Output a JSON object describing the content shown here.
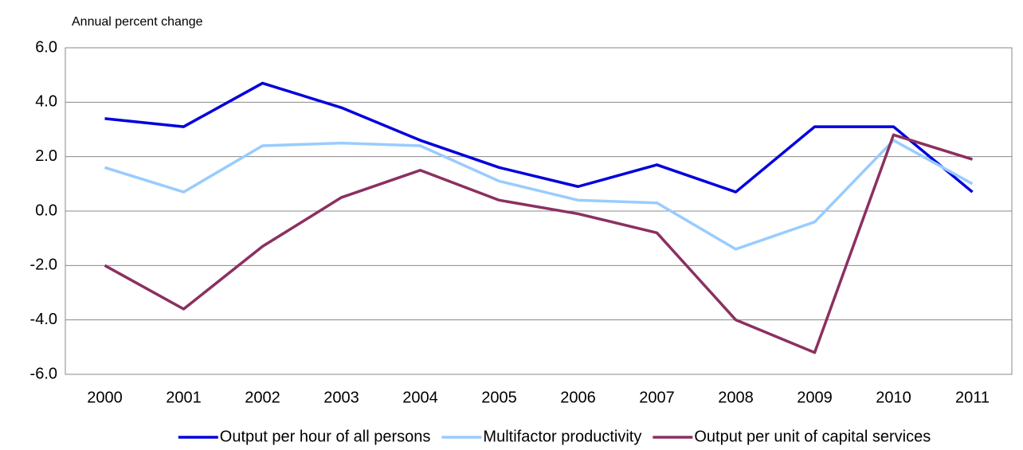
{
  "chart_data": {
    "type": "line",
    "y_label": "Annual percent change",
    "categories": [
      "2000",
      "2001",
      "2002",
      "2003",
      "2004",
      "2005",
      "2006",
      "2007",
      "2008",
      "2009",
      "2010",
      "2011"
    ],
    "series": [
      {
        "name": "Output per hour of all persons",
        "color": "#0000dd",
        "values": [
          3.4,
          3.1,
          4.7,
          3.8,
          2.6,
          1.6,
          0.9,
          1.7,
          0.7,
          3.1,
          3.1,
          0.7
        ]
      },
      {
        "name": "Multifactor productivity",
        "color": "#99ccff",
        "values": [
          1.6,
          0.7,
          2.4,
          2.5,
          2.4,
          1.1,
          0.4,
          0.3,
          -1.4,
          -0.4,
          2.6,
          1.0
        ]
      },
      {
        "name": "Output per unit of capital services",
        "color": "#8b3060",
        "values": [
          -2.0,
          -3.6,
          -1.3,
          0.5,
          1.5,
          0.4,
          -0.1,
          -0.8,
          -4.0,
          -5.2,
          2.8,
          1.9
        ]
      }
    ],
    "ylim": [
      -6,
      6
    ],
    "yticks": [
      {
        "value": -6,
        "label": "-6.0"
      },
      {
        "value": -4,
        "label": "-4.0"
      },
      {
        "value": -2,
        "label": "-2.0"
      },
      {
        "value": 0,
        "label": "0.0"
      },
      {
        "value": 2,
        "label": "2.0"
      },
      {
        "value": 4,
        "label": "4.0"
      },
      {
        "value": 6,
        "label": "6.0"
      }
    ],
    "grid": true,
    "legend": "bottom"
  }
}
